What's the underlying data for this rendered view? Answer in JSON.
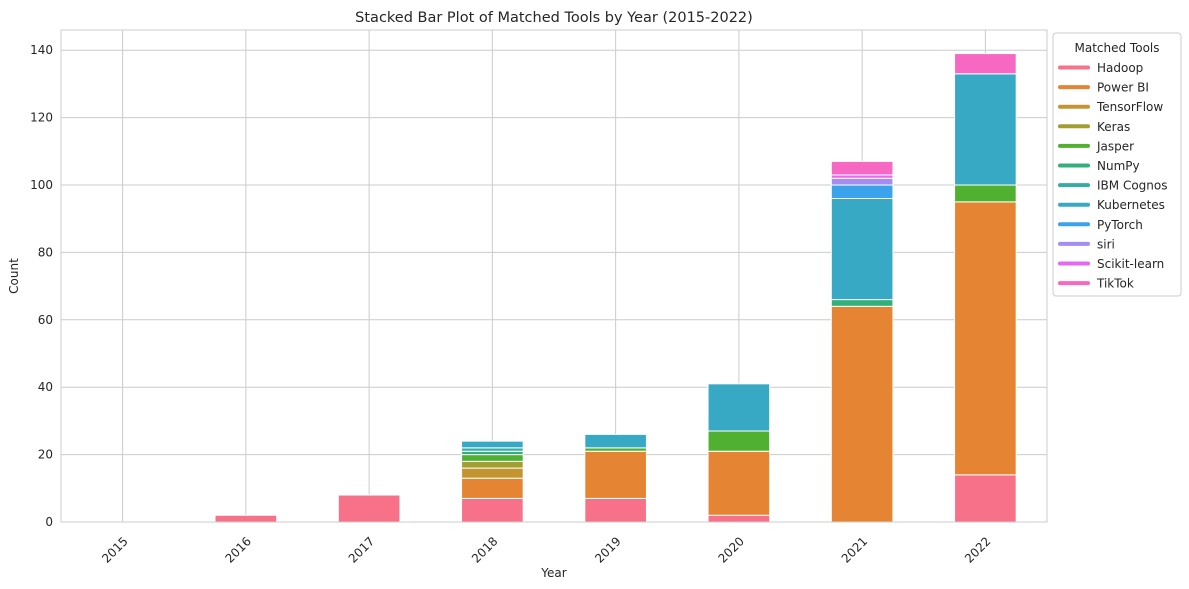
{
  "chart_data": {
    "type": "bar",
    "stacked": true,
    "title": "Stacked Bar Plot of Matched Tools by Year (2015-2022)",
    "xlabel": "Year",
    "ylabel": "Count",
    "ylim": [
      0,
      146
    ],
    "yticks": [
      0,
      20,
      40,
      60,
      80,
      100,
      120,
      140
    ],
    "grid": true,
    "legend": {
      "title": "Matched Tools",
      "placement": "right-outside-top"
    },
    "categories": [
      "2015",
      "2016",
      "2017",
      "2018",
      "2019",
      "2020",
      "2021",
      "2022"
    ],
    "series": [
      {
        "name": "Hadoop",
        "color": "#f77189",
        "values": [
          0,
          2,
          8,
          7,
          7,
          2,
          0,
          14
        ]
      },
      {
        "name": "Power BI",
        "color": "#e58432",
        "values": [
          0,
          0,
          0,
          6,
          14,
          19,
          64,
          81
        ]
      },
      {
        "name": "TensorFlow",
        "color": "#c39532",
        "values": [
          0,
          0,
          0,
          3,
          0,
          0,
          0,
          0
        ]
      },
      {
        "name": "Keras",
        "color": "#a19f31",
        "values": [
          0,
          0,
          0,
          2,
          0,
          0,
          0,
          0
        ]
      },
      {
        "name": "Jasper",
        "color": "#50b131",
        "values": [
          0,
          0,
          0,
          2,
          1,
          6,
          0,
          5
        ]
      },
      {
        "name": "NumPy",
        "color": "#33b07a",
        "values": [
          0,
          0,
          0,
          1,
          0,
          0,
          2,
          0
        ]
      },
      {
        "name": "IBM Cognos",
        "color": "#35aca4",
        "values": [
          0,
          0,
          0,
          1,
          0,
          0,
          0,
          0
        ]
      },
      {
        "name": "Kubernetes",
        "color": "#38a9c5",
        "values": [
          0,
          0,
          0,
          2,
          4,
          14,
          30,
          33
        ]
      },
      {
        "name": "PyTorch",
        "color": "#3ba3ec",
        "values": [
          0,
          0,
          0,
          0,
          0,
          0,
          4,
          0
        ]
      },
      {
        "name": "siri",
        "color": "#a48cf4",
        "values": [
          0,
          0,
          0,
          0,
          0,
          0,
          2,
          0
        ]
      },
      {
        "name": "Scikit-learn",
        "color": "#e866f4",
        "values": [
          0,
          0,
          0,
          0,
          0,
          0,
          1,
          0
        ]
      },
      {
        "name": "TikTok",
        "color": "#f668c2",
        "values": [
          0,
          0,
          0,
          0,
          0,
          0,
          4,
          6
        ]
      }
    ]
  }
}
